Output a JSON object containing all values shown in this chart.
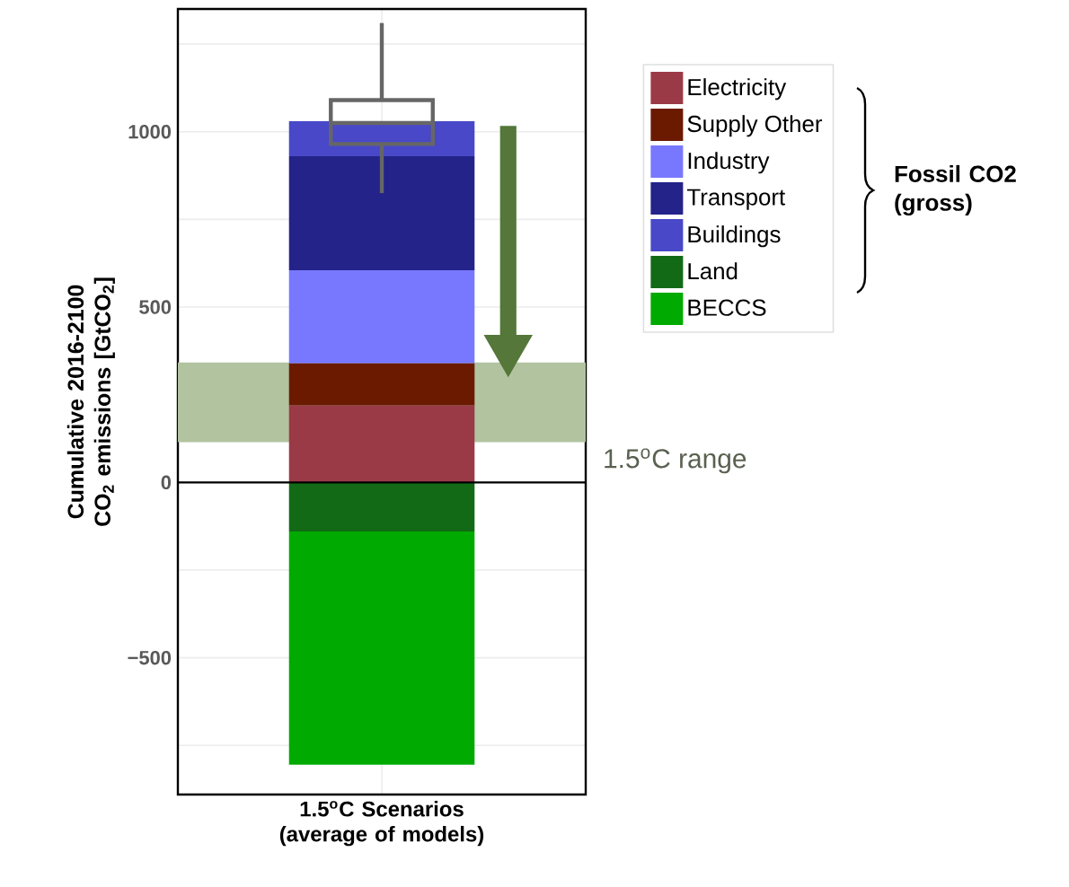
{
  "chart_data": {
    "type": "bar",
    "stacked": true,
    "ylabel": "Cumulative 2016-2100 CO$_{2}$ emissions [GtCO$_{2}$]",
    "categories": [
      "1.5$^{o}$C Scenarios (average of models)"
    ],
    "series": [
      {
        "name": "Electricity",
        "color": "#9b3a47",
        "values": [
          220
        ]
      },
      {
        "name": "Supply Other",
        "color": "#6b1a00",
        "values": [
          120
        ]
      },
      {
        "name": "Industry",
        "color": "#7878ff",
        "values": [
          265
        ]
      },
      {
        "name": "Transport",
        "color": "#232389",
        "values": [
          325
        ]
      },
      {
        "name": "Buildings",
        "color": "#4848c8",
        "values": [
          100
        ]
      },
      {
        "name": "Land",
        "color": "#136a16",
        "values": [
          -140
        ]
      },
      {
        "name": "BECCS",
        "color": "#00aa00",
        "values": [
          -665
        ]
      },
      {
        "type": "box",
        "color": "#666666",
        "boxes": [
          {
            "low": 825,
            "q1": 965,
            "median": 1025,
            "q3": 1090,
            "high": 1310
          }
        ]
      }
    ],
    "ylim": [
      -890,
      1350
    ],
    "yticks": [
      {
        "value": -750,
        "label": null
      },
      {
        "value": -500,
        "label": "−500"
      },
      {
        "value": -250,
        "label": null
      },
      0,
      {
        "value": 250,
        "label": null
      },
      500,
      {
        "value": 750,
        "label": null
      },
      1000,
      {
        "value": 1250,
        "label": null
      }
    ],
    "bands": [
      {
        "axis": "y",
        "from": 115,
        "to": 342,
        "label": "1.5$^{o}$C range",
        "color": "#b2c3a0"
      }
    ],
    "annotations": [
      "Fossil CO2 (gross)"
    ],
    "grid": true,
    "legend": "right"
  }
}
